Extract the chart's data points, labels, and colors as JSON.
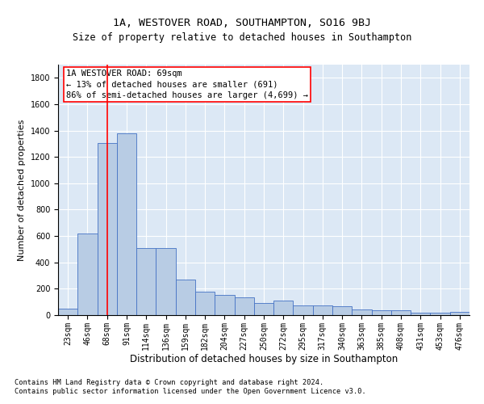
{
  "title": "1A, WESTOVER ROAD, SOUTHAMPTON, SO16 9BJ",
  "subtitle": "Size of property relative to detached houses in Southampton",
  "xlabel": "Distribution of detached houses by size in Southampton",
  "ylabel": "Number of detached properties",
  "footer_line1": "Contains HM Land Registry data © Crown copyright and database right 2024.",
  "footer_line2": "Contains public sector information licensed under the Open Government Licence v3.0.",
  "categories": [
    "23sqm",
    "46sqm",
    "68sqm",
    "91sqm",
    "114sqm",
    "136sqm",
    "159sqm",
    "182sqm",
    "204sqm",
    "227sqm",
    "250sqm",
    "272sqm",
    "295sqm",
    "317sqm",
    "340sqm",
    "363sqm",
    "385sqm",
    "408sqm",
    "431sqm",
    "453sqm",
    "476sqm"
  ],
  "values": [
    50,
    620,
    1305,
    1380,
    510,
    510,
    268,
    175,
    152,
    132,
    95,
    110,
    75,
    72,
    65,
    40,
    38,
    36,
    20,
    20,
    22
  ],
  "bar_color": "#b8cce4",
  "bar_edge_color": "#4472c4",
  "ylim": [
    0,
    1900
  ],
  "yticks": [
    0,
    200,
    400,
    600,
    800,
    1000,
    1200,
    1400,
    1600,
    1800
  ],
  "property_label": "1A WESTOVER ROAD: 69sqm",
  "annotation_line1": "← 13% of detached houses are smaller (691)",
  "annotation_line2": "86% of semi-detached houses are larger (4,699) →",
  "vline_bin_index": 2.0,
  "bg_color": "#dce8f5",
  "title_fontsize": 9.5,
  "subtitle_fontsize": 8.5,
  "ylabel_fontsize": 8,
  "xlabel_fontsize": 8.5,
  "tick_fontsize": 7,
  "annotation_fontsize": 7.5,
  "footer_fontsize": 6.2
}
